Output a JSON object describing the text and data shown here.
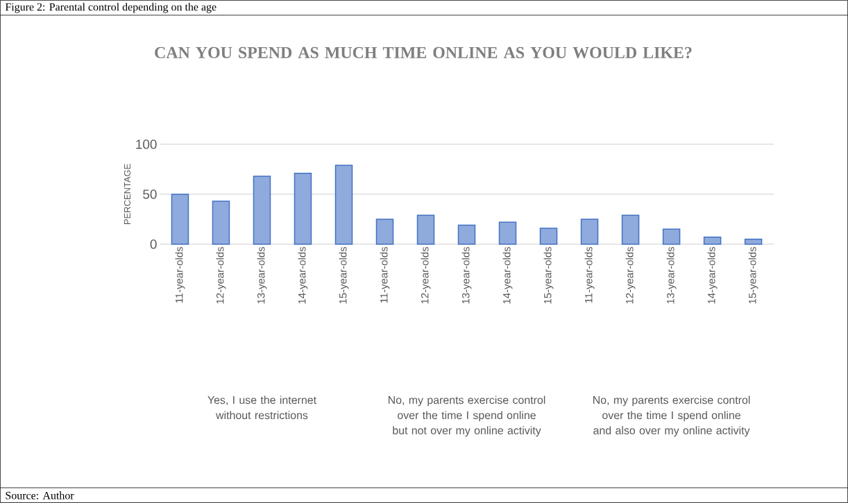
{
  "chart_data": {
    "type": "bar",
    "title": "CAN YOU SPEND AS MUCH TIME ONLINE AS YOU WOULD LIKE?",
    "ylabel": "PERCENTAGE",
    "categories": [
      "11-year-olds",
      "12-year-olds",
      "13-year-olds",
      "14-year-olds",
      "15-year-olds",
      "11-year-olds",
      "12-year-olds",
      "13-year-olds",
      "14-year-olds",
      "15-year-olds",
      "11-year-olds",
      "12-year-olds",
      "13-year-olds",
      "14-year-olds",
      "15-year-olds"
    ],
    "values": [
      50,
      43,
      68,
      71,
      79,
      25,
      29,
      19,
      22,
      16,
      25,
      29,
      15,
      7,
      5
    ],
    "color": "#8faadc",
    "ylim": [
      0,
      100
    ],
    "yticks": [
      0,
      50,
      100
    ],
    "grid": "y",
    "annotations": [
      "Figure 2: Parental control depending on the age",
      "Yes, I use the internet without restrictions",
      "No, my parents exercise control over the time I spend online but not over my online activity",
      "No, my parents exercise control over the time I spend online and also over my online activity",
      "Source: Author"
    ]
  }
}
